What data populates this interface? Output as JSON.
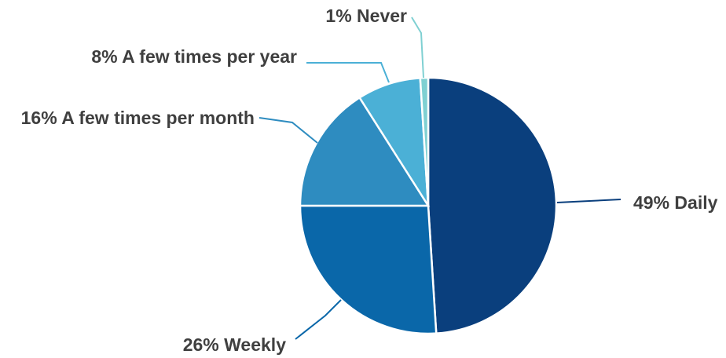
{
  "chart_data": {
    "type": "pie",
    "title": "",
    "legend": "none",
    "categories": [
      "Daily",
      "Weekly",
      "A few times per month",
      "A few times per year",
      "Never"
    ],
    "values": [
      49,
      26,
      16,
      8,
      1
    ],
    "labels": [
      "49% Daily",
      "26% Weekly",
      "16% A few times per month",
      "8% A few times per year",
      "1% Never"
    ],
    "colors": [
      "#0a3f7d",
      "#0a67a9",
      "#2e8cc0",
      "#4bb0d6",
      "#7fd0d2"
    ]
  }
}
